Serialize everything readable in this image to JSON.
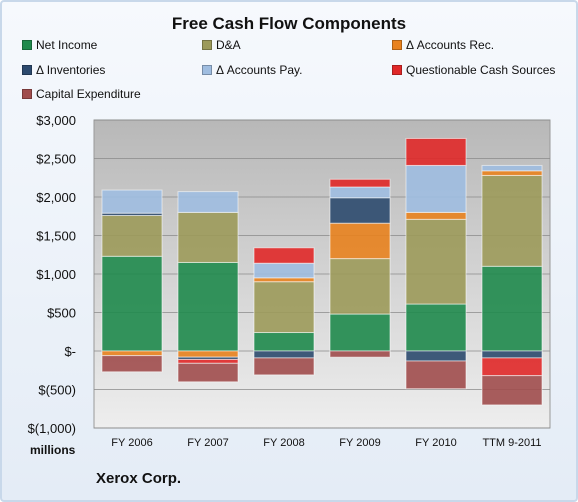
{
  "chart_data": {
    "type": "bar",
    "stacked": true,
    "title": "Free Cash Flow Components",
    "ylabel": "millions",
    "ylim": [
      -1000,
      3000
    ],
    "yticks": [
      {
        "value": 3000,
        "label": "$3,000"
      },
      {
        "value": 2500,
        "label": "$2,500"
      },
      {
        "value": 2000,
        "label": "$2,000"
      },
      {
        "value": 1500,
        "label": "$1,500"
      },
      {
        "value": 1000,
        "label": "$1,000"
      },
      {
        "value": 500,
        "label": "$500"
      },
      {
        "value": 0,
        "label": "$-"
      },
      {
        "value": -500,
        "label": "$(500)"
      },
      {
        "value": -1000,
        "label": "$(1,000)"
      }
    ],
    "grid": true,
    "legend_position": "top",
    "categories": [
      "FY 2006",
      "FY 2007",
      "FY 2008",
      "FY 2009",
      "FY 2010",
      "TTM 9-2011"
    ],
    "series": [
      {
        "name": "Net Income",
        "color": "#1f8a4c",
        "values": [
          1230,
          1150,
          240,
          480,
          610,
          1100
        ]
      },
      {
        "name": "D&A",
        "color": "#9c9a5a",
        "values": [
          530,
          650,
          660,
          720,
          1100,
          1180
        ]
      },
      {
        "name": "Δ Accounts Rec.",
        "color": "#e8821e",
        "values": [
          -60,
          -80,
          50,
          460,
          90,
          60
        ]
      },
      {
        "name": "Δ Inventories",
        "color": "#2c4a6e",
        "values": [
          30,
          -30,
          -90,
          330,
          -130,
          -90
        ]
      },
      {
        "name": "Δ Accounts Pay.",
        "color": "#9fbde0",
        "values": [
          300,
          270,
          190,
          140,
          610,
          70
        ]
      },
      {
        "name": "Questionable Cash Sources",
        "color": "#e02828",
        "values": [
          0,
          -50,
          200,
          100,
          350,
          -230
        ]
      },
      {
        "name": "Capital Expenditure",
        "color": "#a04d4d",
        "values": [
          -210,
          -240,
          -220,
          -80,
          -360,
          -380
        ]
      }
    ]
  },
  "company": "Xerox Corp."
}
